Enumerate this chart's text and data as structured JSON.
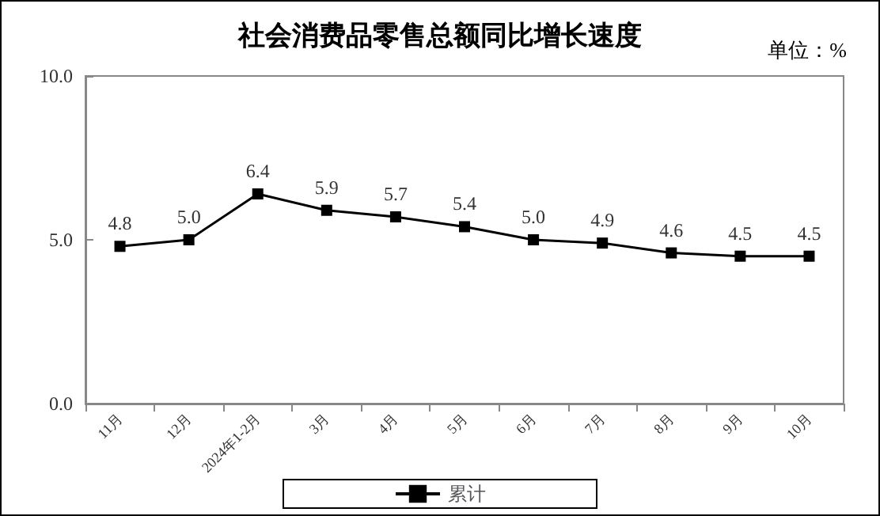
{
  "chart_data": {
    "type": "line",
    "title": "社会消费品零售总额同比增长速度",
    "annotations": [
      "单位：%"
    ],
    "categories": [
      "11月",
      "12月",
      "2024年1-2月",
      "3月",
      "4月",
      "5月",
      "6月",
      "7月",
      "8月",
      "9月",
      "10月"
    ],
    "series": [
      {
        "name": "累计",
        "color": "#000000",
        "values": [
          4.8,
          5.0,
          6.4,
          5.9,
          5.7,
          5.4,
          5.0,
          4.9,
          4.6,
          4.5,
          4.5
        ],
        "value_labels": [
          "4.8",
          "5.0",
          "6.4",
          "5.9",
          "5.7",
          "5.4",
          "5.0",
          "4.9",
          "4.6",
          "4.5",
          "4.5"
        ]
      }
    ],
    "ylim": [
      0,
      10
    ],
    "yticks": [
      {
        "value": 0,
        "label": "0.0"
      },
      {
        "value": 5,
        "label": "5.0"
      },
      {
        "value": 10,
        "label": "10.0"
      }
    ],
    "grid": false,
    "legend": "bottom",
    "marker": "square",
    "line_style": "solid"
  }
}
